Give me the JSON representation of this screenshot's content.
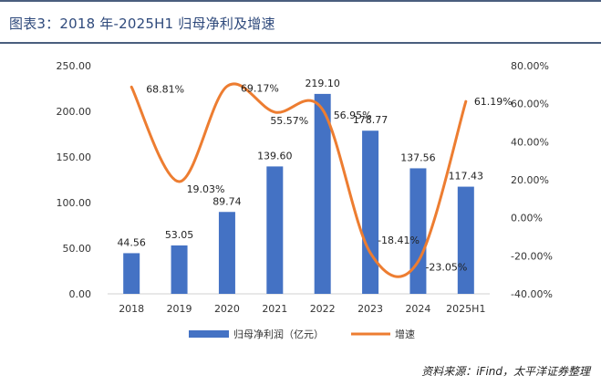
{
  "header": {
    "title": "图表3：2018 年-2025H1 归母净利及增速"
  },
  "chart_data": {
    "type": "bar+line",
    "categories": [
      "2018",
      "2019",
      "2020",
      "2021",
      "2022",
      "2023",
      "2024",
      "2025H1"
    ],
    "series": [
      {
        "name": "归母净利润（亿元）",
        "type": "bar",
        "axis": "left",
        "color": "#4472c4",
        "values": [
          44.56,
          53.05,
          89.74,
          139.6,
          219.1,
          178.77,
          137.56,
          117.43
        ],
        "labels": [
          "44.56",
          "53.05",
          "89.74",
          "139.60",
          "219.10",
          "178.77",
          "137.56",
          "117.43"
        ]
      },
      {
        "name": "增速",
        "type": "line",
        "axis": "right",
        "color": "#ed7d31",
        "values": [
          68.81,
          19.03,
          69.17,
          55.57,
          56.95,
          -18.41,
          -23.05,
          61.19
        ],
        "labels": [
          "68.81%",
          "19.03%",
          "69.17%",
          "55.57%",
          "56.95%",
          "-18.41%",
          "-23.05%",
          "61.19%"
        ]
      }
    ],
    "y_left": {
      "min": 0,
      "max": 250,
      "ticks": [
        "0.00",
        "50.00",
        "100.00",
        "150.00",
        "200.00",
        "250.00"
      ]
    },
    "y_right": {
      "min": -40,
      "max": 80,
      "ticks": [
        "-40.00%",
        "-20.00%",
        "0.00%",
        "20.00%",
        "40.00%",
        "60.00%",
        "80.00%"
      ]
    },
    "grid": false,
    "legend_position": "bottom"
  },
  "footer": {
    "source": "资料来源：iFind，太平洋证券整理"
  }
}
